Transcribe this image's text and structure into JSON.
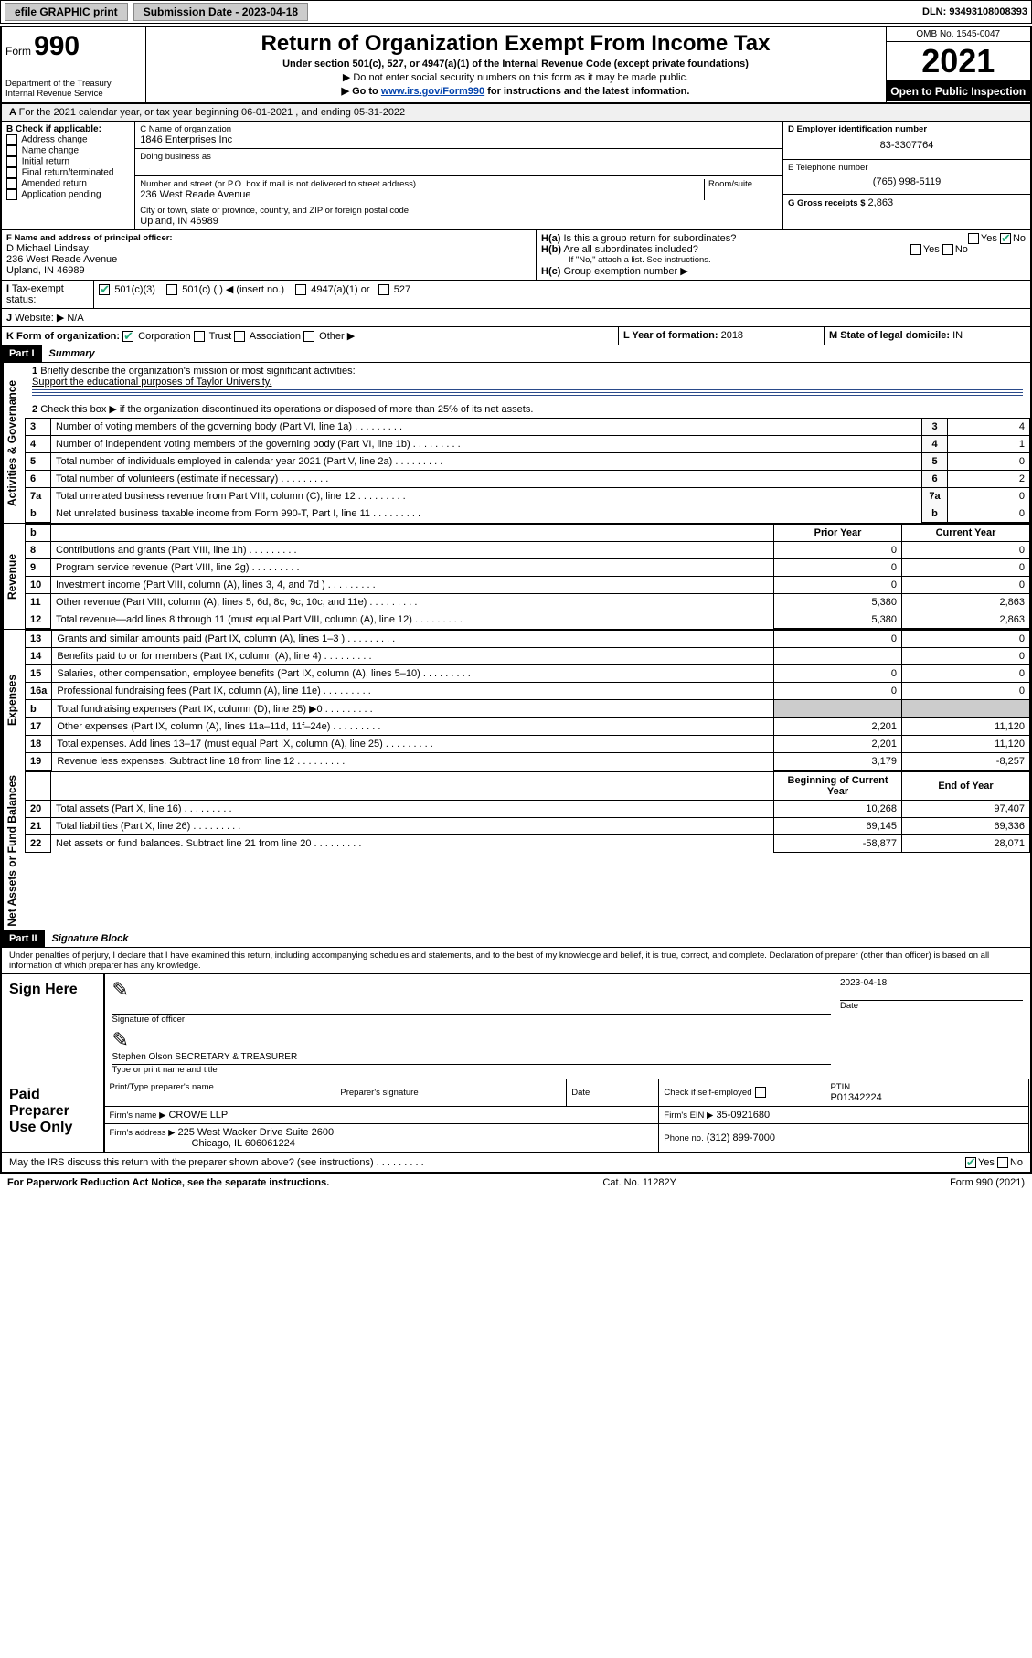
{
  "topbar": {
    "efile": "efile GRAPHIC print",
    "submission_label": "Submission Date - 2023-04-18",
    "dln": "DLN: 93493108008393"
  },
  "header": {
    "form_word": "Form",
    "form_num": "990",
    "dept": "Department of the Treasury",
    "irs": "Internal Revenue Service",
    "title": "Return of Organization Exempt From Income Tax",
    "sub1": "Under section 501(c), 527, or 4947(a)(1) of the Internal Revenue Code (except private foundations)",
    "sub2": "Do not enter social security numbers on this form as it may be made public.",
    "sub3_pre": "Go to ",
    "sub3_link": "www.irs.gov/Form990",
    "sub3_post": " for instructions and the latest information.",
    "omb": "OMB No. 1545-0047",
    "year": "2021",
    "open": "Open to Public Inspection"
  },
  "lineA": "For the 2021 calendar year, or tax year beginning 06-01-2021   , and ending 05-31-2022",
  "B": {
    "label": "B Check if applicable:",
    "opts": [
      "Address change",
      "Name change",
      "Initial return",
      "Final return/terminated",
      "Amended return",
      "Application pending"
    ]
  },
  "C": {
    "name_label": "C Name of organization",
    "name": "1846 Enterprises Inc",
    "dba_label": "Doing business as",
    "street_label": "Number and street (or P.O. box if mail is not delivered to street address)",
    "room_label": "Room/suite",
    "street": "236 West Reade Avenue",
    "city_label": "City or town, state or province, country, and ZIP or foreign postal code",
    "city": "Upland, IN  46989"
  },
  "D": {
    "label": "D Employer identification number",
    "value": "83-3307764"
  },
  "E": {
    "label": "E Telephone number",
    "value": "(765) 998-5119"
  },
  "G": {
    "label": "G Gross receipts $",
    "value": "2,863"
  },
  "F": {
    "label": "F  Name and address of principal officer:",
    "name": "D Michael Lindsay",
    "street": "236 West Reade Avenue",
    "city": "Upland, IN  46989"
  },
  "H": {
    "a": "Is this a group return for subordinates?",
    "b": "Are all subordinates included?",
    "note": "If \"No,\" attach a list. See instructions.",
    "c": "Group exemption number ▶",
    "yes": "Yes",
    "no": "No"
  },
  "I": {
    "label": "Tax-exempt status:",
    "o1": "501(c)(3)",
    "o2": "501(c) (  ) ◀ (insert no.)",
    "o3": "4947(a)(1) or",
    "o4": "527"
  },
  "J": {
    "label": "Website: ▶",
    "value": "N/A"
  },
  "K": {
    "label": "K Form of organization:",
    "o1": "Corporation",
    "o2": "Trust",
    "o3": "Association",
    "o4": "Other ▶"
  },
  "L": {
    "label": "L Year of formation:",
    "value": "2018"
  },
  "M": {
    "label": "M State of legal domicile:",
    "value": "IN"
  },
  "part1": {
    "hdr": "Part I",
    "title": "Summary",
    "q1": "Briefly describe the organization's mission or most significant activities:",
    "q1_ans": "Support the educational purposes of Taylor University.",
    "q2": "Check this box ▶  if the organization discontinued its operations or disposed of more than 25% of its net assets.",
    "rows_gov": [
      {
        "n": "3",
        "t": "Number of voting members of the governing body (Part VI, line 1a)",
        "v": "4"
      },
      {
        "n": "4",
        "t": "Number of independent voting members of the governing body (Part VI, line 1b)",
        "v": "1"
      },
      {
        "n": "5",
        "t": "Total number of individuals employed in calendar year 2021 (Part V, line 2a)",
        "v": "0"
      },
      {
        "n": "6",
        "t": "Total number of volunteers (estimate if necessary)",
        "v": "2"
      },
      {
        "n": "7a",
        "t": "Total unrelated business revenue from Part VIII, column (C), line 12",
        "v": "0"
      },
      {
        "n": "b",
        "t": "Net unrelated business taxable income from Form 990-T, Part I, line 11",
        "v": "0"
      }
    ],
    "col_prior": "Prior Year",
    "col_curr": "Current Year",
    "rows_rev": [
      {
        "n": "8",
        "t": "Contributions and grants (Part VIII, line 1h)",
        "p": "0",
        "c": "0"
      },
      {
        "n": "9",
        "t": "Program service revenue (Part VIII, line 2g)",
        "p": "0",
        "c": "0"
      },
      {
        "n": "10",
        "t": "Investment income (Part VIII, column (A), lines 3, 4, and 7d )",
        "p": "0",
        "c": "0"
      },
      {
        "n": "11",
        "t": "Other revenue (Part VIII, column (A), lines 5, 6d, 8c, 9c, 10c, and 11e)",
        "p": "5,380",
        "c": "2,863"
      },
      {
        "n": "12",
        "t": "Total revenue—add lines 8 through 11 (must equal Part VIII, column (A), line 12)",
        "p": "5,380",
        "c": "2,863"
      }
    ],
    "rows_exp": [
      {
        "n": "13",
        "t": "Grants and similar amounts paid (Part IX, column (A), lines 1–3 )",
        "p": "0",
        "c": "0"
      },
      {
        "n": "14",
        "t": "Benefits paid to or for members (Part IX, column (A), line 4)",
        "p": "",
        "c": "0"
      },
      {
        "n": "15",
        "t": "Salaries, other compensation, employee benefits (Part IX, column (A), lines 5–10)",
        "p": "0",
        "c": "0"
      },
      {
        "n": "16a",
        "t": "Professional fundraising fees (Part IX, column (A), line 11e)",
        "p": "0",
        "c": "0"
      },
      {
        "n": "b",
        "t": "Total fundraising expenses (Part IX, column (D), line 25) ▶0",
        "p": "",
        "c": "",
        "shade": true
      },
      {
        "n": "17",
        "t": "Other expenses (Part IX, column (A), lines 11a–11d, 11f–24e)",
        "p": "2,201",
        "c": "11,120"
      },
      {
        "n": "18",
        "t": "Total expenses. Add lines 13–17 (must equal Part IX, column (A), line 25)",
        "p": "2,201",
        "c": "11,120"
      },
      {
        "n": "19",
        "t": "Revenue less expenses. Subtract line 18 from line 12",
        "p": "3,179",
        "c": "-8,257"
      }
    ],
    "col_beg": "Beginning of Current Year",
    "col_end": "End of Year",
    "rows_net": [
      {
        "n": "20",
        "t": "Total assets (Part X, line 16)",
        "p": "10,268",
        "c": "97,407"
      },
      {
        "n": "21",
        "t": "Total liabilities (Part X, line 26)",
        "p": "69,145",
        "c": "69,336"
      },
      {
        "n": "22",
        "t": "Net assets or fund balances. Subtract line 21 from line 20",
        "p": "-58,877",
        "c": "28,071"
      }
    ],
    "side_gov": "Activities & Governance",
    "side_rev": "Revenue",
    "side_exp": "Expenses",
    "side_net": "Net Assets or Fund Balances"
  },
  "part2": {
    "hdr": "Part II",
    "title": "Signature Block",
    "decl": "Under penalties of perjury, I declare that I have examined this return, including accompanying schedules and statements, and to the best of my knowledge and belief, it is true, correct, and complete. Declaration of preparer (other than officer) is based on all information of which preparer has any knowledge.",
    "sign_here": "Sign Here",
    "sig_officer": "Signature of officer",
    "date": "Date",
    "sig_date": "2023-04-18",
    "name_title": "Stephen Olson  SECRETARY & TREASURER",
    "name_title_label": "Type or print name and title",
    "paid": "Paid Preparer Use Only",
    "p_name_label": "Print/Type preparer's name",
    "p_sig_label": "Preparer's signature",
    "p_date_label": "Date",
    "p_check": "Check          if self-employed",
    "ptin_label": "PTIN",
    "ptin": "P01342224",
    "firm_name_label": "Firm's name    ▶",
    "firm_name": "CROWE LLP",
    "firm_ein_label": "Firm's EIN ▶",
    "firm_ein": "35-0921680",
    "firm_addr_label": "Firm's address ▶",
    "firm_addr1": "225 West Wacker Drive Suite 2600",
    "firm_addr2": "Chicago, IL  606061224",
    "phone_label": "Phone no.",
    "phone": "(312) 899-7000",
    "may_irs": "May the IRS discuss this return with the preparer shown above? (see instructions)"
  },
  "footer": {
    "left": "For Paperwork Reduction Act Notice, see the separate instructions.",
    "mid": "Cat. No. 11282Y",
    "right": "Form 990 (2021)"
  }
}
